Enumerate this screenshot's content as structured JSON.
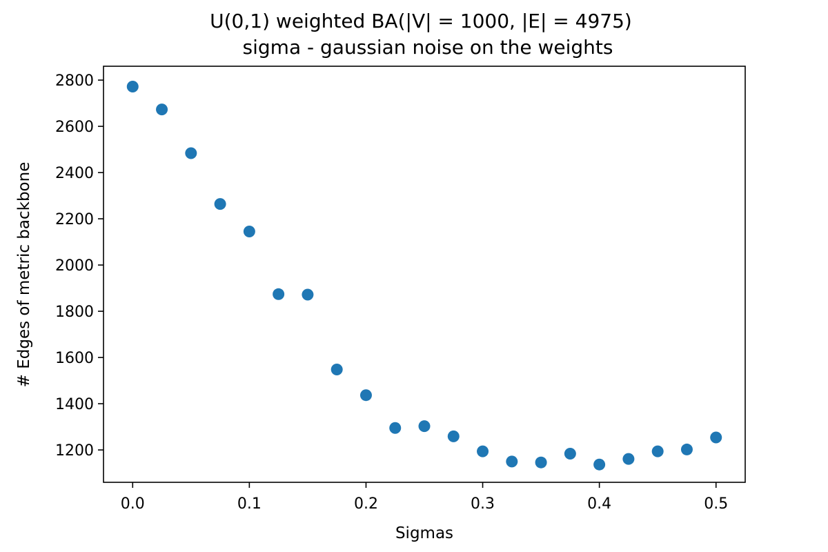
{
  "chart_data": {
    "type": "scatter",
    "title": "U(0,1) weighted BA(|V| = 1000, |E| = 4975)",
    "subtitle": "sigma - gaussian noise on the weights",
    "xlabel": "Sigmas",
    "ylabel": "# Edges of metric backbone",
    "xlim": [
      -0.025,
      0.525
    ],
    "ylim": [
      1060,
      2860
    ],
    "xticks": [
      0.0,
      0.1,
      0.2,
      0.3,
      0.4,
      0.5
    ],
    "xtick_labels": [
      "0.0",
      "0.1",
      "0.2",
      "0.3",
      "0.4",
      "0.5"
    ],
    "yticks": [
      1200,
      1400,
      1600,
      1800,
      2000,
      2200,
      2400,
      2600,
      2800
    ],
    "ytick_labels": [
      "1200",
      "1400",
      "1600",
      "1800",
      "2000",
      "2200",
      "2400",
      "2600",
      "2800"
    ],
    "grid": false,
    "color": "#1f77b4",
    "x": [
      0.0,
      0.025,
      0.05,
      0.075,
      0.1,
      0.125,
      0.15,
      0.175,
      0.2,
      0.225,
      0.25,
      0.275,
      0.3,
      0.325,
      0.35,
      0.375,
      0.4,
      0.425,
      0.45,
      0.475,
      0.5
    ],
    "y": [
      2772,
      2673,
      2484,
      2264,
      2145,
      1874,
      1872,
      1548,
      1437,
      1295,
      1303,
      1259,
      1194,
      1150,
      1146,
      1184,
      1137,
      1161,
      1194,
      1202,
      1254
    ]
  }
}
